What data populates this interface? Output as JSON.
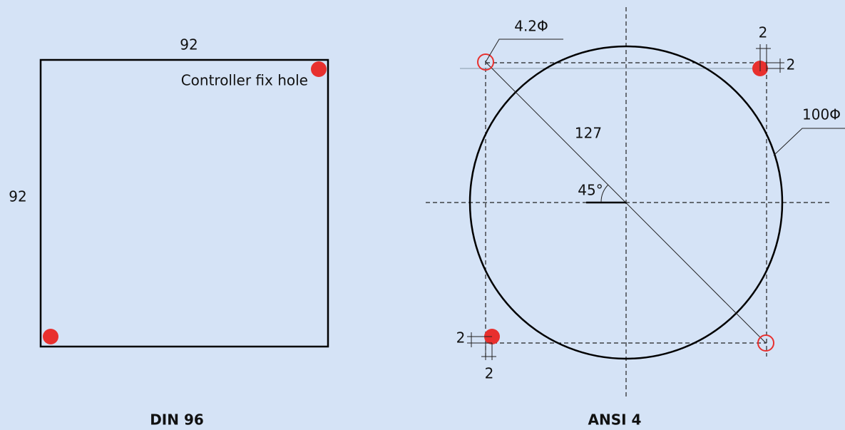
{
  "din96": {
    "title": "DIN 96",
    "width_label": "92",
    "height_label": "92",
    "hole_label": "Controller fix hole"
  },
  "ansi4": {
    "title": "ANSI 4",
    "hole_diameter": "4.2Φ",
    "circle_diameter": "100Φ",
    "diagonal": "127",
    "angle": "45°",
    "offset_top": "2",
    "offset_right": "2",
    "offset_left": "2",
    "offset_bottom": "2"
  }
}
